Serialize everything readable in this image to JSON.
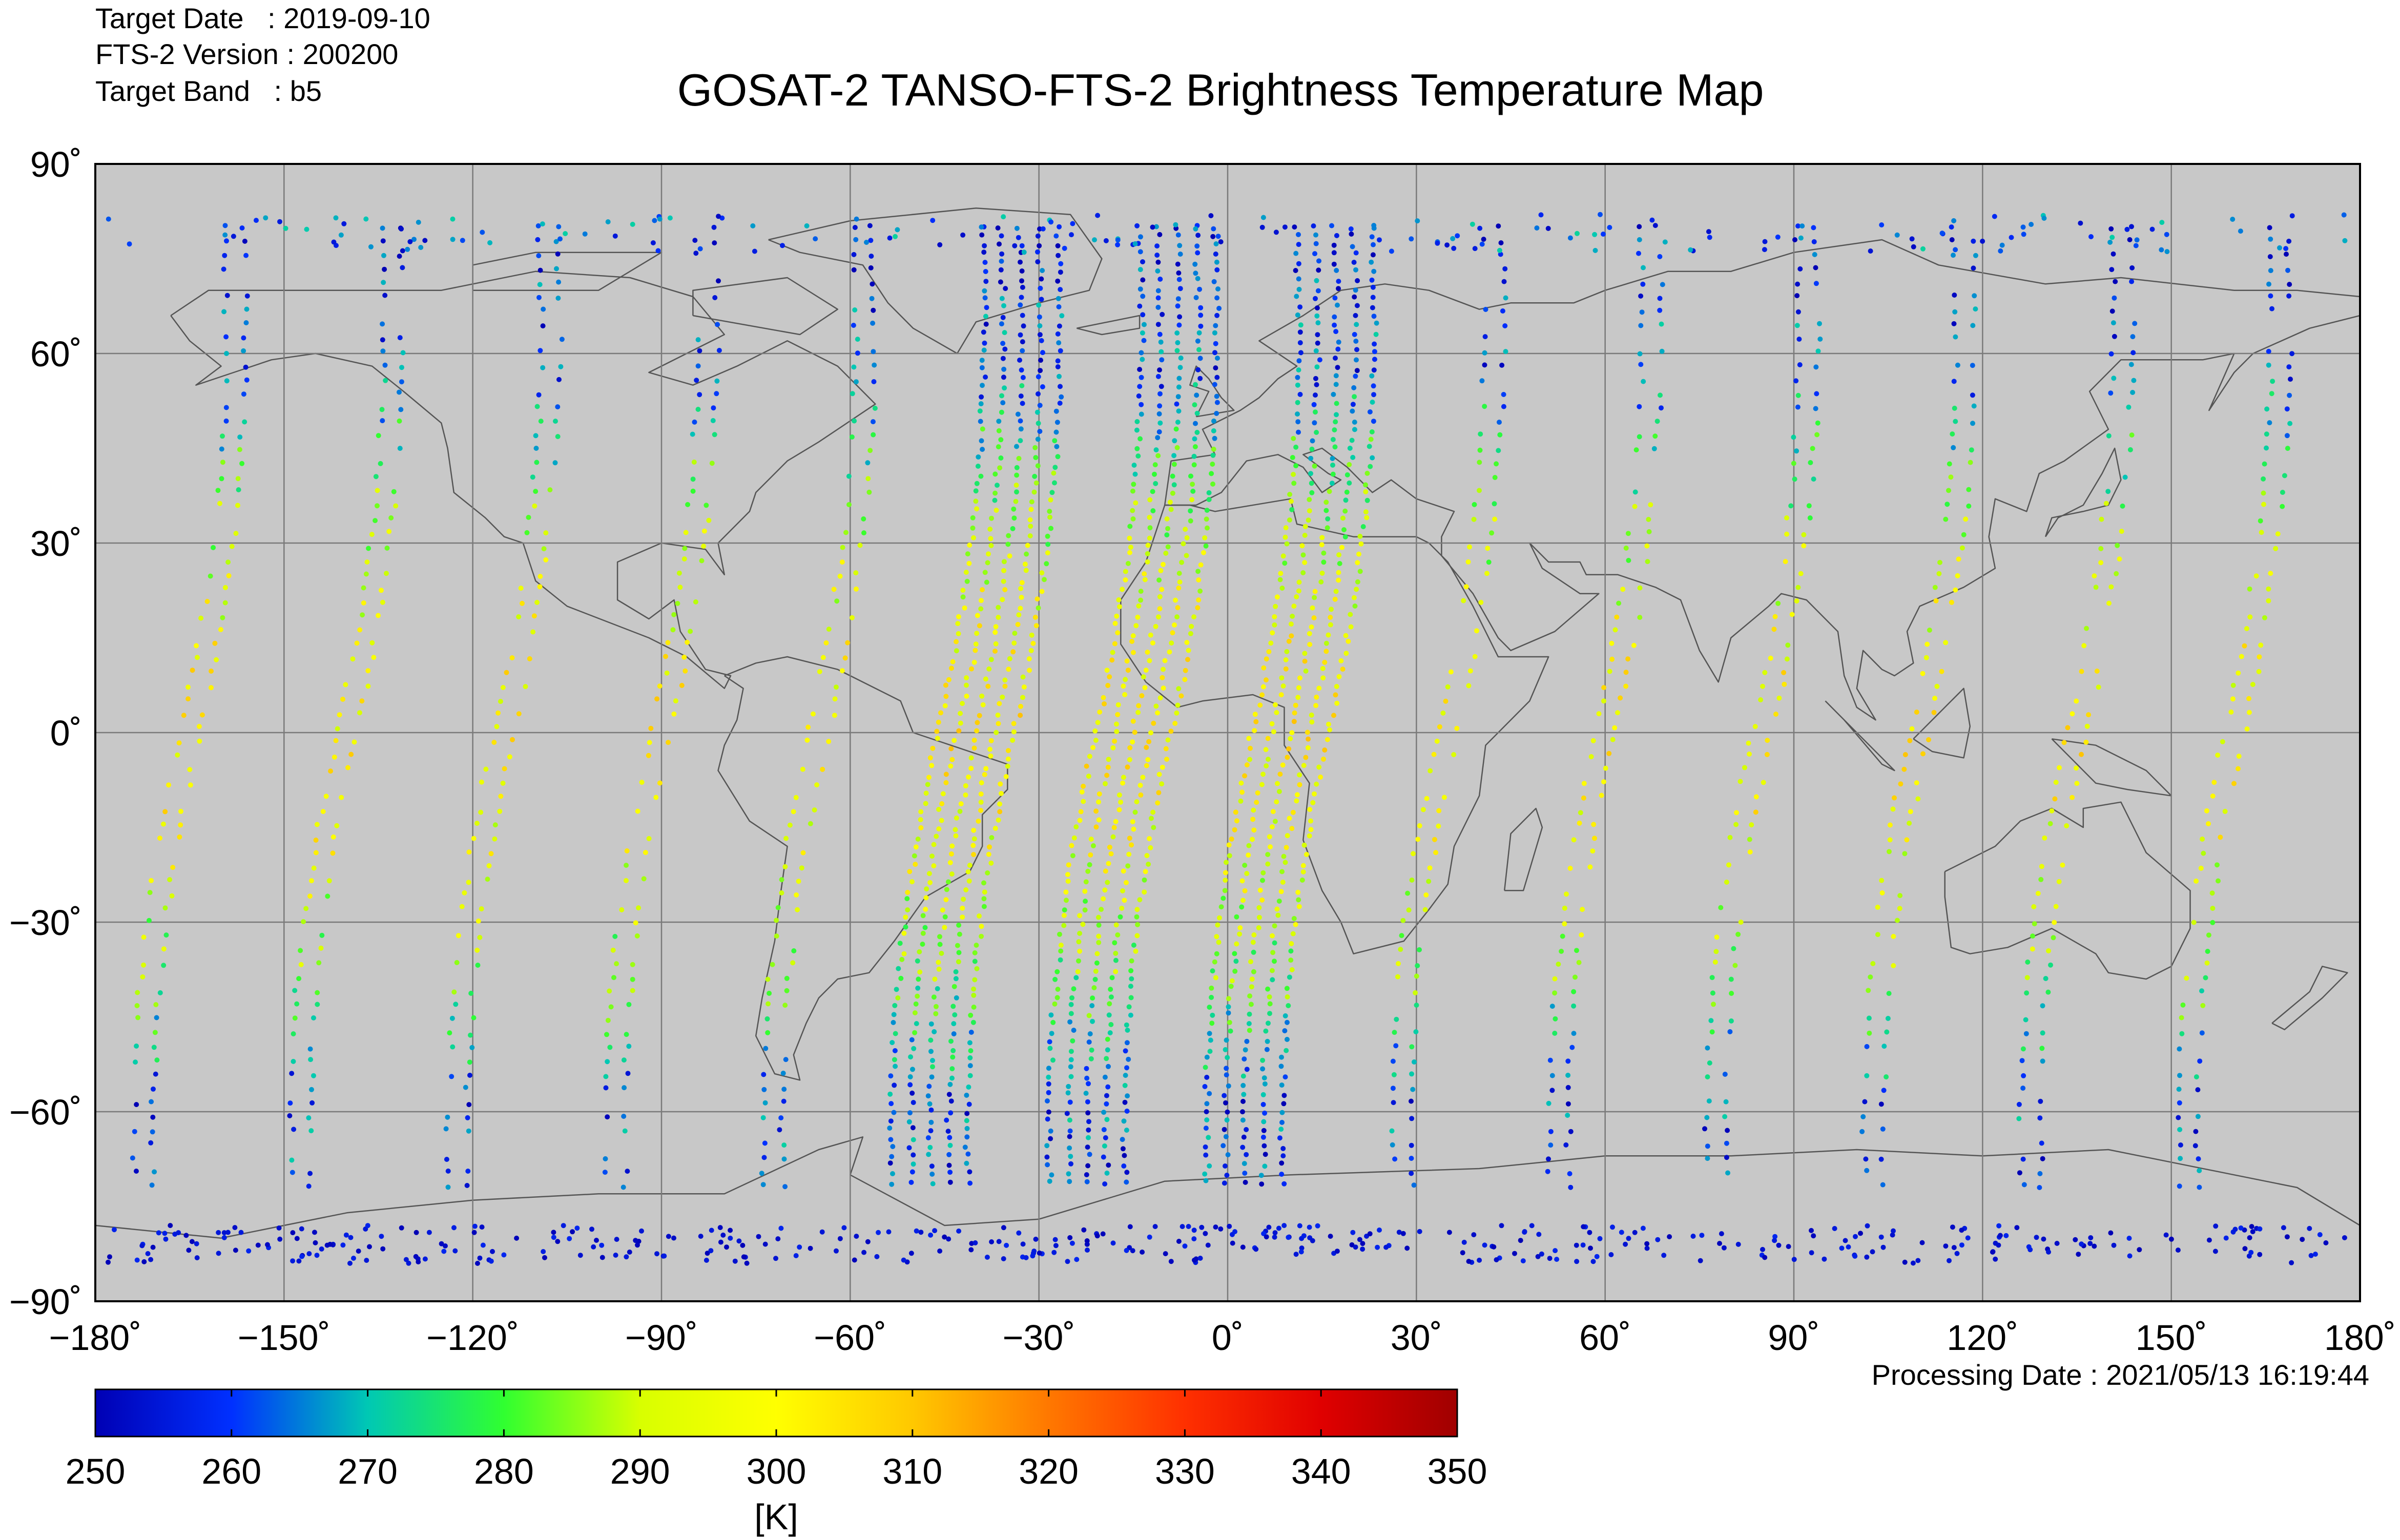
{
  "header": {
    "target_date": "Target Date   : 2019-09-10",
    "version": "FTS-2 Version : 200200",
    "band": "Target Band   : b5",
    "title": "GOSAT-2 TANSO-FTS-2 Brightness Temperature Map"
  },
  "footer": {
    "processing_date": "Processing Date : 2021/05/13 16:19:44"
  },
  "colors": {
    "ocean": "#c8c8c8",
    "coast": "#555555",
    "grid": "#7a7a7a"
  },
  "map": {
    "projection": "equirectangular",
    "lon_range": [
      -180,
      180
    ],
    "lat_range": [
      -90,
      90
    ],
    "lon_ticks": [
      {
        "value": -180,
        "label": "−180˚"
      },
      {
        "value": -150,
        "label": "−150˚"
      },
      {
        "value": -120,
        "label": "−120˚"
      },
      {
        "value": -90,
        "label": "−90˚"
      },
      {
        "value": -60,
        "label": "−60˚"
      },
      {
        "value": -30,
        "label": "−30˚"
      },
      {
        "value": 0,
        "label": "0˚"
      },
      {
        "value": 30,
        "label": "30˚"
      },
      {
        "value": 60,
        "label": "60˚"
      },
      {
        "value": 90,
        "label": "90˚"
      },
      {
        "value": 120,
        "label": "120˚"
      },
      {
        "value": 150,
        "label": "150˚"
      },
      {
        "value": 180,
        "label": "180˚"
      }
    ],
    "lat_ticks": [
      {
        "value": 90,
        "label": "90˚"
      },
      {
        "value": 60,
        "label": "60˚"
      },
      {
        "value": 30,
        "label": "30˚"
      },
      {
        "value": 0,
        "label": "0˚"
      },
      {
        "value": -30,
        "label": "−30˚"
      },
      {
        "value": -60,
        "label": "−60˚"
      },
      {
        "value": -90,
        "label": "−90˚"
      }
    ],
    "orbit_tracks": {
      "description_of_method": "sun-synchronous descending tracks",
      "equator_lons": [
        -165,
        -140,
        -115,
        -90,
        -65,
        -40,
        -15,
        10,
        35,
        60,
        85,
        110,
        135,
        160
      ],
      "dense_equator_lons": [
        -40,
        -15,
        10
      ]
    }
  },
  "colorbar": {
    "min": 250,
    "max": 350,
    "ticks": [
      "250",
      "260",
      "270",
      "280",
      "290",
      "300",
      "310",
      "320",
      "330",
      "340",
      "350"
    ],
    "stops": [
      "#0000b4",
      "#0030ff",
      "#00c8b4",
      "#30ff30",
      "#d8ff00",
      "#ffff00",
      "#ffc800",
      "#ff7800",
      "#ff3000",
      "#e00000",
      "#a00000"
    ],
    "unit": "[K]"
  }
}
